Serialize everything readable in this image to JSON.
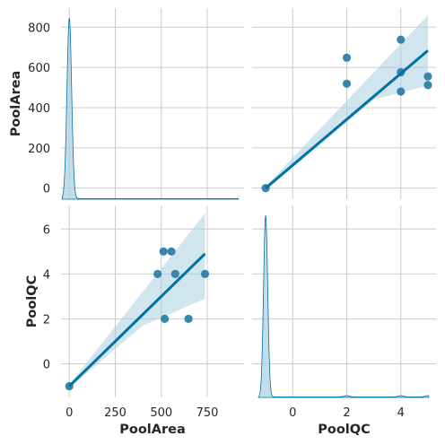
{
  "chart_data": {
    "type": "scatter",
    "variables": [
      "PoolArea",
      "PoolQC"
    ],
    "axes": {
      "PoolArea": {
        "range": [
          -45,
          950
        ],
        "ticks": [
          0,
          250,
          500,
          750
        ],
        "diag_ticks": [
          0,
          200,
          400,
          600,
          800
        ]
      },
      "PoolQC": {
        "range": [
          -1.5,
          5.3
        ],
        "xrange": [
          -1.5,
          5.3
        ],
        "ticks": [
          0,
          2,
          4
        ],
        "diag_ticks": [
          0,
          2,
          4,
          6
        ]
      }
    },
    "points": {
      "PoolArea": [
        0,
        512,
        648,
        576,
        555,
        519,
        738,
        480
      ],
      "PoolQC": [
        -1,
        5,
        2,
        4,
        5,
        2,
        4,
        4
      ]
    },
    "regressions": {
      "PoolArea_vs_PoolQC": {
        "x": [
          -1,
          5
        ],
        "y": [
          0,
          684
        ]
      },
      "PoolQC_vs_PoolArea": {
        "x": [
          0,
          738
        ],
        "y": [
          -1,
          4.9
        ]
      }
    },
    "kde_peak": {
      "PoolArea": 0,
      "PoolQC": -1
    },
    "grid": true,
    "colors": {
      "point": "#2d7fa8",
      "line": "#0072a3",
      "band": "#a9cfe0",
      "grid": "#cccccc"
    }
  }
}
